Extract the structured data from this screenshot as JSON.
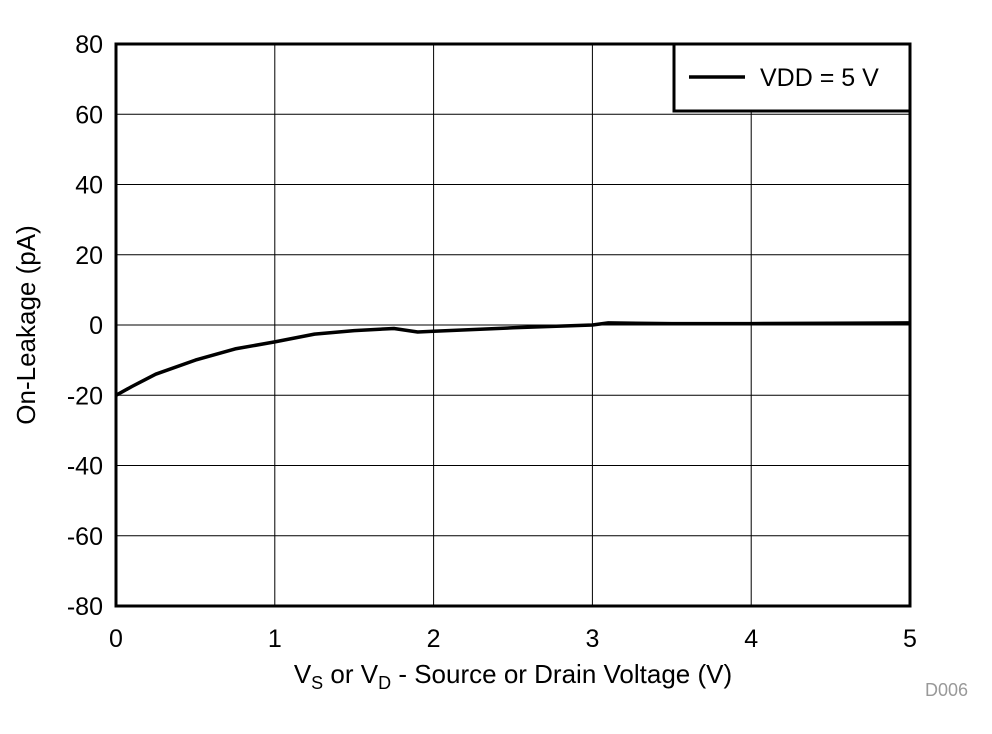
{
  "chart_data": {
    "type": "line",
    "title": "",
    "xlabel": "VS or VD - Source or Drain Voltage (V)",
    "xlabel_parts": {
      "v1": "V",
      "s1": "S",
      "mid": " or ",
      "v2": "V",
      "s2": "D",
      "rest": " - Source or Drain Voltage (V)"
    },
    "ylabel": "On-Leakage (pA)",
    "xlim": [
      0,
      5
    ],
    "ylim": [
      -80,
      80
    ],
    "xticks": [
      "0",
      "1",
      "2",
      "3",
      "4",
      "5"
    ],
    "yticks": [
      "80",
      "60",
      "40",
      "20",
      "0",
      "-20",
      "-40",
      "-60",
      "-80"
    ],
    "grid": true,
    "legend_position": "top-right",
    "series": [
      {
        "name": "VDD = 5 V",
        "color": "#000000",
        "x": [
          0,
          0.1,
          0.25,
          0.5,
          0.75,
          1.0,
          1.25,
          1.5,
          1.75,
          1.9,
          2.0,
          2.5,
          3.0,
          3.1,
          3.5,
          4.0,
          4.5,
          5.0
        ],
        "y": [
          -20,
          -17.5,
          -14,
          -10,
          -6.8,
          -4.8,
          -2.6,
          -1.6,
          -1.0,
          -2.0,
          -1.8,
          -0.8,
          0.0,
          0.6,
          0.4,
          0.4,
          0.5,
          0.6
        ]
      }
    ],
    "figure_code": "D006"
  }
}
